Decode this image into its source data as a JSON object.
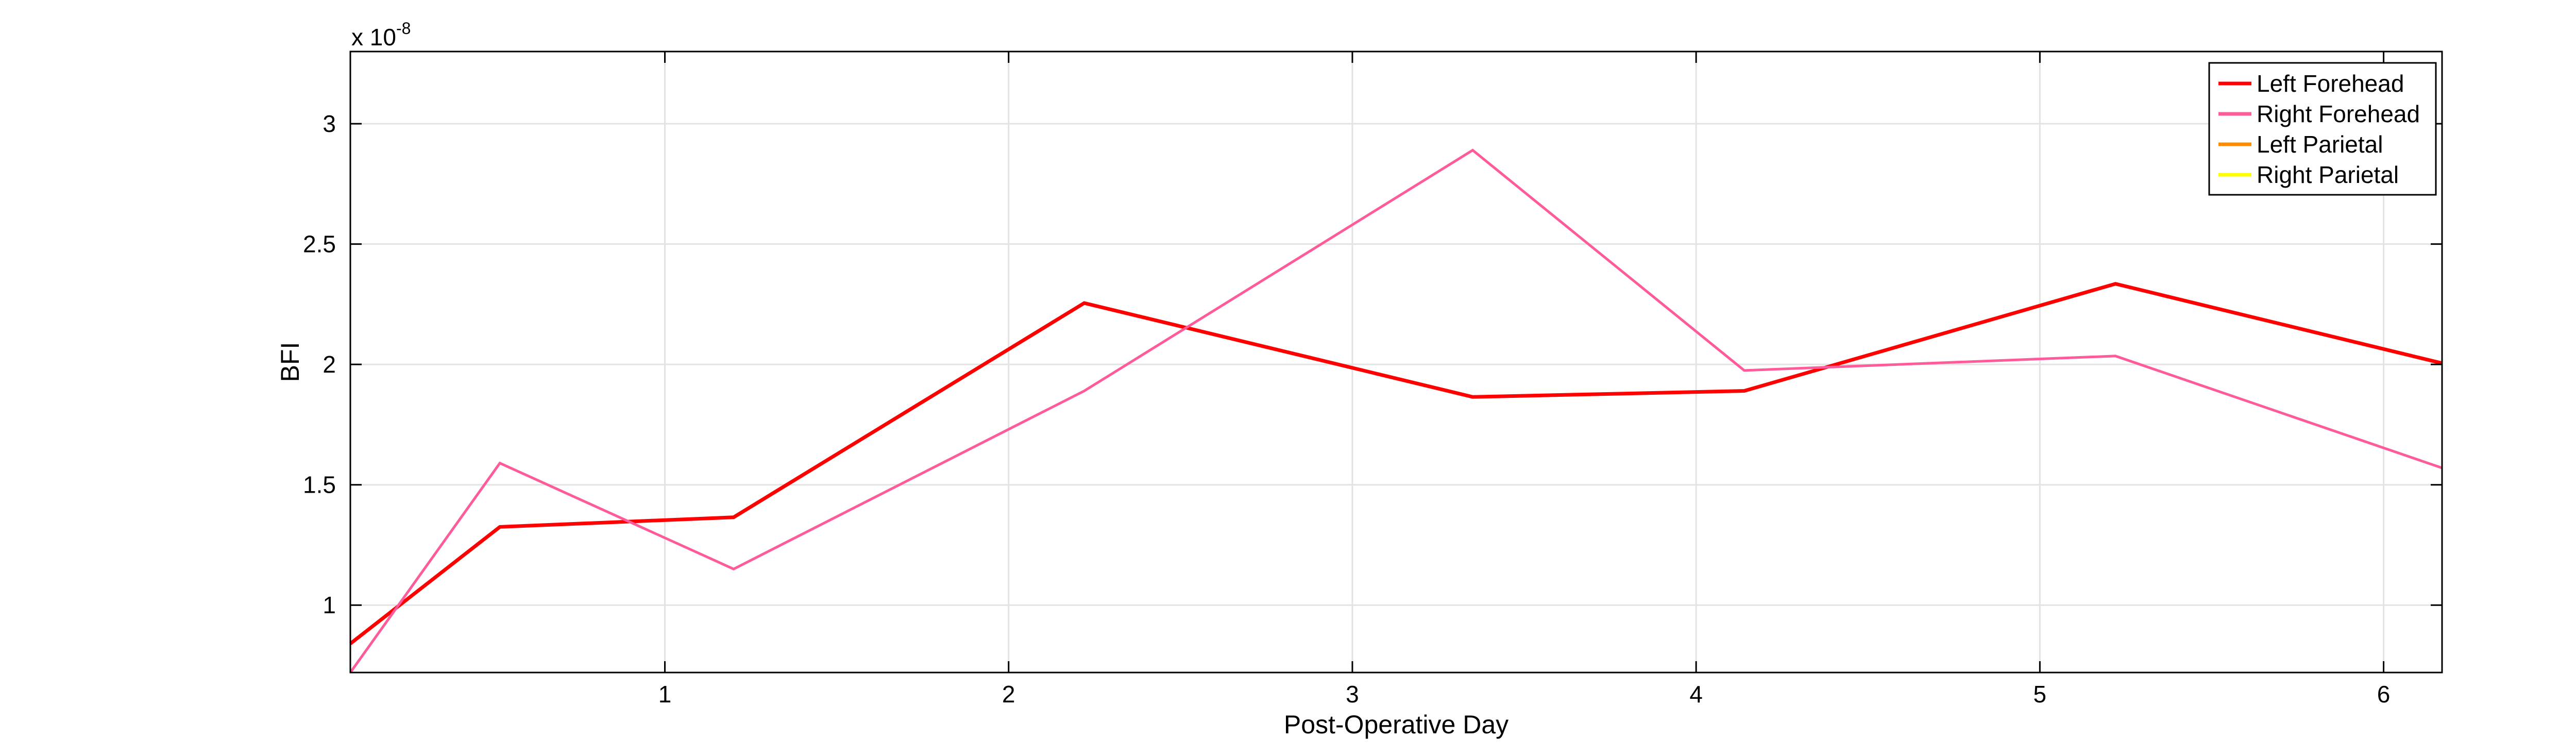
{
  "chart_data": {
    "type": "line",
    "xlabel": "Post-Operative Day",
    "ylabel": "BFI",
    "y_multiplier": "x 10",
    "y_multiplier_exponent": "-8",
    "xlim": [
      0.085,
      6.17
    ],
    "ylim": [
      0.72,
      3.3
    ],
    "xticks": [
      1,
      2,
      3,
      4,
      5,
      6
    ],
    "xtick_labels": [
      "1",
      "2",
      "3",
      "4",
      "5",
      "6"
    ],
    "yticks": [
      1,
      1.5,
      2,
      2.5,
      3
    ],
    "ytick_labels": [
      "1",
      "1.5",
      "2",
      "2.5",
      "3"
    ],
    "grid": true,
    "legend_position": "top-right",
    "series": [
      {
        "name": "Left Forehead",
        "color": "#ff0000",
        "x": [
          0.085,
          0.52,
          1.2,
          2.22,
          3.35,
          4.14,
          5.22,
          6.17
        ],
        "y": [
          0.84,
          1.325,
          1.365,
          2.255,
          1.865,
          1.89,
          2.335,
          2.005
        ]
      },
      {
        "name": "Right Forehead",
        "color": "#ff5b9a",
        "x": [
          0.085,
          0.52,
          1.2,
          2.22,
          3.35,
          4.14,
          5.22,
          6.17
        ],
        "y": [
          0.72,
          1.59,
          1.15,
          1.89,
          2.89,
          1.975,
          2.035,
          1.57
        ]
      },
      {
        "name": "Left Parietal",
        "color": "#ff8c00",
        "x": [],
        "y": []
      },
      {
        "name": "Right Parietal",
        "color": "#ffff00",
        "x": [],
        "y": []
      }
    ]
  }
}
